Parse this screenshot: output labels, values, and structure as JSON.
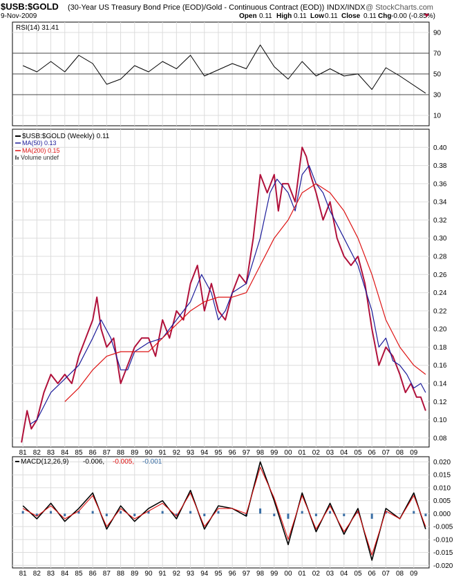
{
  "header": {
    "symbol": "$USB:$GOLD",
    "description": "(30-Year US Treasury Bond Price (EOD)/Gold - Continuous Contract (EOD))",
    "exchange": "INDX/INDX",
    "watermark": "@ StockCharts.com",
    "date": "9-Nov-2009",
    "quote": {
      "open_label": "Open",
      "open": "0.11",
      "high_label": "High",
      "high": "0.11",
      "low_label": "Low",
      "low": "0.11",
      "close_label": "Close",
      "close": "0.11",
      "chg_label": "Chg",
      "chg": "-0.00 (-0.85%)"
    }
  },
  "colors": {
    "price": "#b0103a",
    "ma50": "#1a1a99",
    "ma200": "#dd1111",
    "macd_line": "#000000",
    "macd_signal": "#dd1111",
    "macd_hist": "#3a6ea5",
    "grid": "#dcdcdc",
    "frame": "#000000"
  },
  "chart_data": [
    {
      "type": "line",
      "panel": "rsi",
      "legend_label": "RSI(14) 31.41",
      "ylim": [
        0,
        100
      ],
      "yticks": [
        10,
        30,
        50,
        70,
        90
      ],
      "reference_lines": [
        30,
        50,
        70
      ],
      "x": [
        1981,
        1982,
        1983,
        1984,
        1985,
        1986,
        1987,
        1988,
        1989,
        1990,
        1991,
        1992,
        1993,
        1994,
        1995,
        1996,
        1997,
        1998,
        1999,
        2000,
        2001,
        2002,
        2003,
        2004,
        2005,
        2006,
        2007,
        2008,
        2009.85
      ],
      "values": [
        58,
        52,
        62,
        52,
        68,
        60,
        40,
        45,
        58,
        52,
        62,
        55,
        68,
        48,
        54,
        60,
        55,
        78,
        57,
        45,
        62,
        48,
        55,
        48,
        50,
        35,
        56,
        48,
        31.41
      ]
    },
    {
      "type": "line",
      "panel": "price",
      "legend": [
        {
          "label": "$USB:$GOLD (Weekly) 0.11"
        },
        {
          "label": "MA(50) 0.13"
        },
        {
          "label": "MA(200) 0.15"
        },
        {
          "label": "Volume undef"
        }
      ],
      "ylim": [
        0.07,
        0.42
      ],
      "yticks": [
        0.08,
        0.1,
        0.12,
        0.14,
        0.16,
        0.18,
        0.2,
        0.22,
        0.24,
        0.26,
        0.28,
        0.3,
        0.32,
        0.34,
        0.36,
        0.38,
        0.4
      ],
      "xlabels": [
        "81",
        "82",
        "83",
        "84",
        "85",
        "86",
        "87",
        "88",
        "89",
        "90",
        "91",
        "92",
        "93",
        "94",
        "95",
        "96",
        "97",
        "98",
        "99",
        "00",
        "01",
        "02",
        "03",
        "04",
        "05",
        "06",
        "07",
        "08",
        "09"
      ],
      "series": [
        {
          "key": "price",
          "x": [
            1980.9,
            1981.3,
            1981.6,
            1982.0,
            1982.5,
            1983.0,
            1983.5,
            1984.0,
            1984.5,
            1985.0,
            1985.5,
            1986.0,
            1986.3,
            1986.6,
            1987.0,
            1987.5,
            1988.0,
            1988.5,
            1989.0,
            1989.5,
            1990.0,
            1990.5,
            1991.0,
            1991.5,
            1992.0,
            1992.5,
            1993.0,
            1993.5,
            1994.0,
            1994.5,
            1995.0,
            1995.5,
            1996.0,
            1996.5,
            1997.0,
            1997.5,
            1998.0,
            1998.5,
            1999.0,
            1999.3,
            1999.6,
            2000.0,
            2000.5,
            2001.0,
            2001.3,
            2001.6,
            2002.0,
            2002.5,
            2003.0,
            2003.5,
            2004.0,
            2004.5,
            2005.0,
            2005.5,
            2006.0,
            2006.5,
            2007.0,
            2007.5,
            2008.0,
            2008.4,
            2008.8,
            2009.2,
            2009.5,
            2009.85
          ],
          "values": [
            0.075,
            0.11,
            0.09,
            0.1,
            0.13,
            0.15,
            0.14,
            0.15,
            0.14,
            0.17,
            0.19,
            0.21,
            0.235,
            0.2,
            0.18,
            0.19,
            0.14,
            0.16,
            0.18,
            0.19,
            0.19,
            0.17,
            0.21,
            0.19,
            0.22,
            0.21,
            0.25,
            0.27,
            0.22,
            0.25,
            0.22,
            0.21,
            0.24,
            0.26,
            0.25,
            0.3,
            0.37,
            0.35,
            0.37,
            0.33,
            0.36,
            0.36,
            0.34,
            0.4,
            0.39,
            0.37,
            0.35,
            0.32,
            0.34,
            0.3,
            0.28,
            0.27,
            0.28,
            0.25,
            0.2,
            0.16,
            0.18,
            0.17,
            0.15,
            0.13,
            0.14,
            0.125,
            0.125,
            0.11
          ]
        },
        {
          "key": "ma50",
          "x": [
            1981.5,
            1982.0,
            1983.0,
            1984.0,
            1985.0,
            1986.0,
            1986.6,
            1987.3,
            1988.0,
            1988.5,
            1989.0,
            1990.0,
            1991.0,
            1992.0,
            1993.0,
            1993.8,
            1994.5,
            1995.0,
            1995.5,
            1996.0,
            1997.0,
            1998.0,
            1998.7,
            1999.2,
            2000.0,
            2000.5,
            2001.0,
            2001.5,
            2002.0,
            2002.5,
            2003.0,
            2004.0,
            2005.0,
            2006.0,
            2006.5,
            2007.0,
            2007.5,
            2008.0,
            2008.5,
            2009.0,
            2009.5,
            2009.85
          ],
          "values": [
            0.095,
            0.1,
            0.13,
            0.145,
            0.16,
            0.19,
            0.21,
            0.19,
            0.155,
            0.155,
            0.175,
            0.185,
            0.19,
            0.21,
            0.23,
            0.26,
            0.24,
            0.21,
            0.22,
            0.24,
            0.25,
            0.3,
            0.35,
            0.365,
            0.35,
            0.33,
            0.37,
            0.38,
            0.36,
            0.35,
            0.33,
            0.3,
            0.27,
            0.22,
            0.18,
            0.19,
            0.165,
            0.16,
            0.15,
            0.135,
            0.14,
            0.13
          ]
        },
        {
          "key": "ma200",
          "x": [
            1984.0,
            1985.0,
            1986.0,
            1987.0,
            1988.0,
            1989.0,
            1990.0,
            1991.0,
            1992.0,
            1993.0,
            1994.0,
            1995.0,
            1996.0,
            1997.0,
            1998.0,
            1999.0,
            2000.0,
            2001.0,
            2002.0,
            2003.0,
            2004.0,
            2005.0,
            2006.0,
            2007.0,
            2008.0,
            2009.0,
            2009.85
          ],
          "values": [
            0.12,
            0.135,
            0.155,
            0.17,
            0.175,
            0.175,
            0.175,
            0.19,
            0.205,
            0.22,
            0.23,
            0.235,
            0.235,
            0.24,
            0.27,
            0.3,
            0.32,
            0.35,
            0.36,
            0.35,
            0.33,
            0.3,
            0.26,
            0.21,
            0.18,
            0.16,
            0.15
          ]
        }
      ]
    },
    {
      "type": "line",
      "panel": "macd",
      "legend_label": "MACD(12,26,9)",
      "legend_values": [
        "-0.006,",
        "-0.005,",
        "-0.001"
      ],
      "ylim": [
        -0.021,
        0.022
      ],
      "yticks": [
        0.02,
        0.015,
        0.01,
        0.005,
        0.0,
        -0.005,
        -0.01,
        -0.015,
        -0.02
      ],
      "ytick_labels": [
        "0.020",
        "0.015",
        "0.010",
        "0.005",
        "0.000",
        "-0.005",
        "-0.010",
        "-0.015",
        "-0.020"
      ],
      "xlabels": [
        "81",
        "82",
        "83",
        "84",
        "85",
        "86",
        "87",
        "88",
        "89",
        "90",
        "91",
        "92",
        "93",
        "94",
        "95",
        "96",
        "97",
        "98",
        "99",
        "00",
        "01",
        "02",
        "03",
        "04",
        "05",
        "06",
        "07",
        "08",
        "09"
      ],
      "series": [
        {
          "key": "macd_line",
          "x": [
            1981,
            1982,
            1983,
            1984,
            1985,
            1986,
            1987,
            1988,
            1989,
            1990,
            1991,
            1992,
            1993,
            1994,
            1995,
            1996,
            1997,
            1998,
            1999,
            2000,
            2001,
            2002,
            2003,
            2004,
            2005,
            2006,
            2007,
            2008,
            2009,
            2009.85
          ],
          "values": [
            0.003,
            -0.002,
            0.004,
            -0.003,
            0.002,
            0.008,
            -0.006,
            0.003,
            -0.003,
            0.002,
            0.005,
            -0.002,
            0.009,
            -0.006,
            0.003,
            0.002,
            -0.001,
            0.02,
            0.005,
            -0.012,
            0.008,
            -0.007,
            0.004,
            -0.008,
            0.002,
            -0.018,
            0.002,
            -0.002,
            0.008,
            -0.006
          ]
        },
        {
          "key": "macd_signal",
          "x": [
            1981,
            1982,
            1983,
            1984,
            1985,
            1986,
            1987,
            1988,
            1989,
            1990,
            1991,
            1992,
            1993,
            1994,
            1995,
            1996,
            1997,
            1998,
            1999,
            2000,
            2001,
            2002,
            2003,
            2004,
            2005,
            2006,
            2007,
            2008,
            2009,
            2009.85
          ],
          "values": [
            0.002,
            -0.001,
            0.003,
            -0.002,
            0.001,
            0.007,
            -0.005,
            0.002,
            -0.002,
            0.001,
            0.004,
            -0.001,
            0.008,
            -0.005,
            0.002,
            0.002,
            0.0,
            0.018,
            0.006,
            -0.01,
            0.007,
            -0.006,
            0.003,
            -0.007,
            0.001,
            -0.016,
            0.001,
            -0.002,
            0.007,
            -0.005
          ]
        },
        {
          "key": "macd_hist",
          "x": [
            1981,
            1982,
            1983,
            1984,
            1985,
            1986,
            1987,
            1988,
            1989,
            1990,
            1991,
            1992,
            1993,
            1994,
            1995,
            1996,
            1997,
            1998,
            1999,
            2000,
            2001,
            2002,
            2003,
            2004,
            2005,
            2006,
            2007,
            2008,
            2009,
            2009.85
          ],
          "values": [
            0.001,
            -0.001,
            0.001,
            -0.001,
            0.001,
            0.001,
            -0.001,
            0.001,
            -0.001,
            0.001,
            0.001,
            -0.001,
            0.001,
            -0.001,
            0.001,
            0.0,
            -0.001,
            0.002,
            -0.001,
            -0.002,
            0.001,
            -0.001,
            0.001,
            -0.001,
            0.001,
            -0.002,
            0.001,
            0.0,
            0.001,
            -0.001
          ]
        }
      ]
    }
  ]
}
